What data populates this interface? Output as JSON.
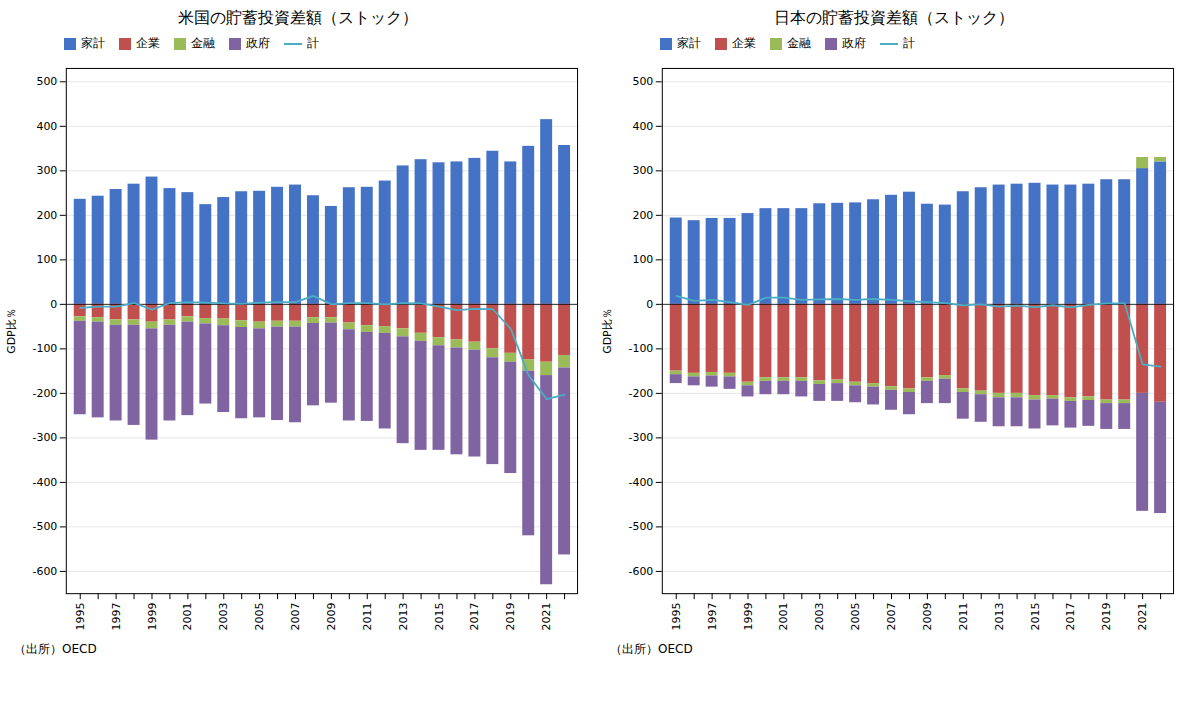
{
  "chart_data": [
    {
      "type": "bar",
      "stacked": true,
      "title": "米国の貯蓄投資差額（ストック）",
      "ylabel": "GDP比％",
      "caption": "（出所）OECD",
      "categories": [
        "1995",
        null,
        "1997",
        null,
        "1999",
        null,
        "2001",
        null,
        "2003",
        null,
        "2005",
        null,
        "2007",
        null,
        "2009",
        null,
        "2011",
        null,
        "2013",
        null,
        "2015",
        null,
        "2017",
        null,
        "2019",
        null,
        "2021",
        null
      ],
      "series": [
        {
          "name": "家計",
          "color": "#4472C4",
          "values": [
            236,
            243,
            258,
            270,
            286,
            260,
            251,
            224,
            240,
            253,
            254,
            263,
            268,
            244,
            220,
            262,
            263,
            277,
            311,
            325,
            318,
            320,
            328,
            344,
            320,
            355,
            415,
            357
          ]
        },
        {
          "name": "企業",
          "color": "#C0504D",
          "values": [
            -28,
            -30,
            -35,
            -35,
            -40,
            -35,
            -28,
            -32,
            -33,
            -37,
            -40,
            -38,
            -38,
            -30,
            -30,
            -42,
            -48,
            -50,
            -55,
            -65,
            -75,
            -80,
            -85,
            -100,
            -110,
            -125,
            -130,
            -115
          ]
        },
        {
          "name": "金融",
          "color": "#9BBB59",
          "values": [
            -10,
            -10,
            -12,
            -12,
            -15,
            -12,
            -12,
            -12,
            -15,
            -15,
            -15,
            -13,
            -13,
            -13,
            -12,
            -15,
            -15,
            -15,
            -18,
            -18,
            -18,
            -18,
            -18,
            -20,
            -20,
            -25,
            -30,
            -28
          ]
        },
        {
          "name": "政府",
          "color": "#8064A2",
          "values": [
            -210,
            -215,
            -215,
            -225,
            -250,
            -215,
            -210,
            -180,
            -195,
            -205,
            -200,
            -210,
            -215,
            -185,
            -180,
            -205,
            -200,
            -215,
            -240,
            -245,
            -235,
            -240,
            -240,
            -240,
            -250,
            -370,
            -470,
            -420
          ]
        },
        {
          "name": "計",
          "type": "line",
          "color": "#4BACC6",
          "values": [
            -8,
            -5,
            -5,
            3,
            -12,
            3,
            5,
            4,
            2,
            1,
            4,
            5,
            5,
            19,
            0,
            3,
            3,
            0,
            3,
            2,
            -5,
            -13,
            -10,
            -11,
            -55,
            -160,
            -213,
            -203
          ]
        }
      ],
      "ylim": [
        -650,
        530
      ],
      "yticks": [
        -600,
        -500,
        -400,
        -300,
        -200,
        -100,
        0,
        100,
        200,
        300,
        400,
        500
      ],
      "grid": "y",
      "legend": "upper left"
    },
    {
      "type": "bar",
      "stacked": true,
      "title": "日本の貯蓄投資差額（ストック）",
      "ylabel": "GDP比％",
      "caption": "（出所）OECD",
      "categories": [
        "1995",
        null,
        "1997",
        null,
        "1999",
        null,
        "2001",
        null,
        "2003",
        null,
        "2005",
        null,
        "2007",
        null,
        "2009",
        null,
        "2011",
        null,
        "2013",
        null,
        "2015",
        null,
        "2017",
        null,
        "2019",
        null,
        "2021",
        null
      ],
      "series": [
        {
          "name": "家計",
          "color": "#4472C4",
          "values": [
            194,
            188,
            193,
            193,
            204,
            215,
            215,
            215,
            226,
            227,
            228,
            235,
            245,
            252,
            225,
            223,
            253,
            262,
            268,
            270,
            272,
            268,
            268,
            270,
            280,
            280,
            305,
            320
          ]
        },
        {
          "name": "企業",
          "color": "#C0504D",
          "values": [
            -150,
            -155,
            -153,
            -155,
            -175,
            -165,
            -165,
            -165,
            -172,
            -170,
            -175,
            -178,
            -185,
            -190,
            -165,
            -160,
            -190,
            -195,
            -200,
            -200,
            -205,
            -205,
            -210,
            -208,
            -215,
            -215,
            -200,
            -220
          ]
        },
        {
          "name": "金融",
          "color": "#9BBB59",
          "values": [
            -8,
            -8,
            -8,
            -8,
            -8,
            -8,
            -8,
            -8,
            -8,
            -8,
            -8,
            -8,
            -8,
            -8,
            -8,
            -8,
            -8,
            -8,
            -10,
            -10,
            -10,
            -8,
            -8,
            -8,
            -8,
            -8,
            25,
            10
          ]
        },
        {
          "name": "政府",
          "color": "#8064A2",
          "values": [
            -20,
            -20,
            -25,
            -28,
            -25,
            -30,
            -30,
            -35,
            -38,
            -40,
            -38,
            -40,
            -45,
            -50,
            -50,
            -55,
            -60,
            -62,
            -65,
            -65,
            -65,
            -60,
            -60,
            -58,
            -58,
            -58,
            -265,
            -250
          ]
        },
        {
          "name": "計",
          "type": "line",
          "color": "#4BACC6",
          "values": [
            19,
            8,
            10,
            5,
            -1,
            15,
            15,
            10,
            11,
            12,
            10,
            12,
            10,
            7,
            5,
            3,
            -2,
            0,
            -5,
            -3,
            -6,
            -2,
            -7,
            -1,
            2,
            2,
            -135,
            -140
          ]
        }
      ],
      "ylim": [
        -650,
        530
      ],
      "yticks": [
        -600,
        -500,
        -400,
        -300,
        -200,
        -100,
        0,
        100,
        200,
        300,
        400,
        500
      ],
      "grid": "y",
      "legend": "upper left"
    }
  ]
}
